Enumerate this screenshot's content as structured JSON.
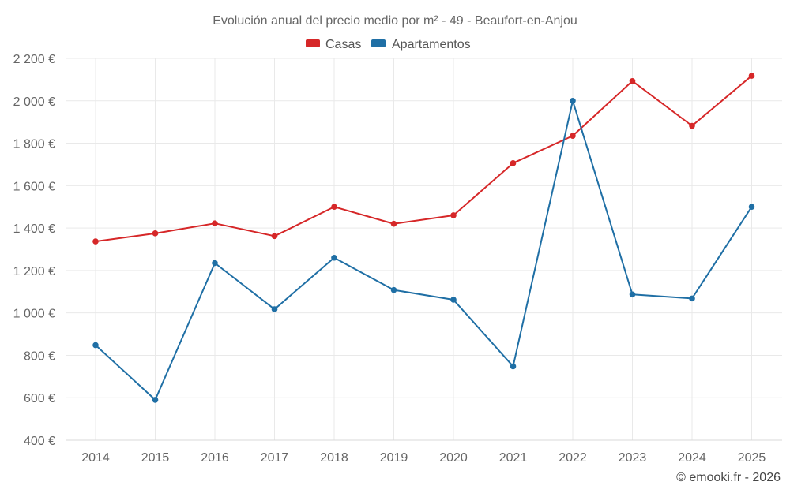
{
  "colors": {
    "casas": "#d62728",
    "apartamentos": "#1f6fa5",
    "grid": "#e9e9e9",
    "text": "#666666",
    "axis": "#d8d8d8"
  },
  "chart_data": {
    "type": "line",
    "title": "Evolución anual del precio medio por m² - 49 - Beaufort-en-Anjou",
    "x": [
      "2014",
      "2015",
      "2016",
      "2017",
      "2018",
      "2019",
      "2020",
      "2021",
      "2022",
      "2023",
      "2024",
      "2025"
    ],
    "series": [
      {
        "name": "Casas",
        "color": "#d62728",
        "values": [
          1337,
          1375,
          1422,
          1362,
          1500,
          1420,
          1460,
          1706,
          1835,
          2093,
          1882,
          2118
        ]
      },
      {
        "name": "Apartamentos",
        "color": "#1f6fa5",
        "values": [
          848,
          590,
          1235,
          1017,
          1260,
          1108,
          1062,
          748,
          2000,
          1087,
          1068,
          1500
        ]
      }
    ],
    "xlabel": "",
    "ylabel": "",
    "ylim": [
      400,
      2200
    ],
    "yticks": [
      400,
      600,
      800,
      1000,
      1200,
      1400,
      1600,
      1800,
      2000,
      2200
    ],
    "ytick_labels": [
      "400 €",
      "600 €",
      "800 €",
      "1 000 €",
      "1 200 €",
      "1 400 €",
      "1 600 €",
      "1 800 €",
      "2 000 €",
      "2 200 €"
    ],
    "grid": true,
    "legend": "top-center"
  },
  "credit": "© emooki.fr - 2026"
}
